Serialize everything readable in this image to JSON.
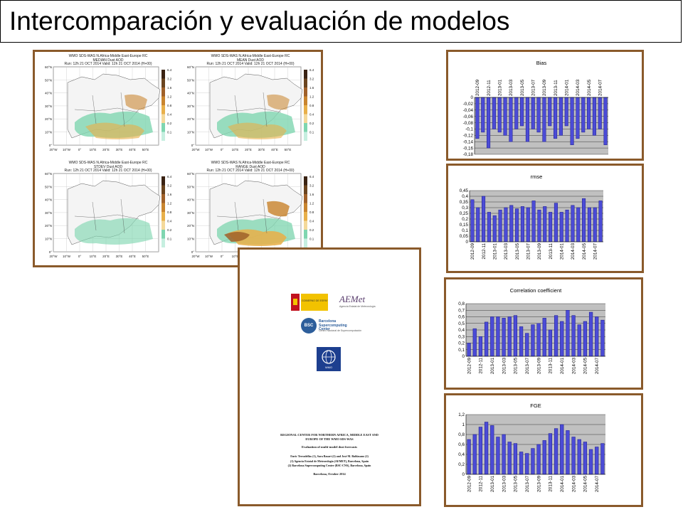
{
  "slide": {
    "title": "Intercomparación y evaluación de modelos"
  },
  "maps": {
    "panels": [
      {
        "line1": "WMO SDS-WAS   N.Africa-Middle East-Europe RC",
        "line2": "MEDIAN   Dust AOD",
        "line3": "Run: 12h 21 OCT 2014   Valid: 12h 21 OCT 2014 (H+00)"
      },
      {
        "line1": "WMO SDS-WAS   N.Africa-Middle East-Europe RC",
        "line2": "MEAN   Dust AOD",
        "line3": "Run: 12h 21 OCT 2014   Valid: 12h 21 OCT 2014 (H+00)"
      },
      {
        "line1": "WMO SDS-WAS   N.Africa-Middle East-Europe RC",
        "line2": "STDEV   Dust AOD",
        "line3": "Run: 12h 21 OCT 2014   Valid: 12h 21 OCT 2014 (H+00)"
      },
      {
        "line1": "WMO SDS-WAS   N.Africa-Middle East-Europe RC",
        "line2": "RANGE   Dust AOD",
        "line3": "Run: 12h 21 OCT 2014   Valid: 12h 21 OCT 2014 (H+00)"
      }
    ],
    "lat_labels": [
      "60°N",
      "50°N",
      "40°N",
      "30°N",
      "20°N",
      "10°N",
      "0°"
    ],
    "lon_labels": [
      "20°W",
      "10°W",
      "0°",
      "10°E",
      "20°E",
      "30°E",
      "40°E",
      "50°E"
    ],
    "colorbar_labels": [
      "6.4",
      "3.2",
      "1.6",
      "1.2",
      "0.8",
      "0.4",
      "0.2",
      "0.1"
    ],
    "colorbar_colors": [
      "#3a2313",
      "#6b4520",
      "#a0612a",
      "#c9852f",
      "#e8b04a",
      "#f4d99a",
      "#7fd6b0",
      "#c6efe0"
    ]
  },
  "report": {
    "aemet_text": "AEMet",
    "aemet_sub": "Agencia Estatal de Meteorología",
    "bsc_name": "Barcelona Supercomputing Center",
    "bsc_sub": "Centro Nacional de Supercomputación",
    "wmo_label": "WMO",
    "gov_text": "GOBIERNO DE ESPAÑA",
    "title1": "REGIONAL CENTER FOR NORTHERN AFRICA, MIDDLE EAST AND",
    "title2": "EUROPE OF THE WMO SDS-WAS",
    "subtitle": "Evaluation of multi-model dust forecasts",
    "authors": "Enric Terradellas (1), Sara Basart (2) and José M. Baldasano (2)",
    "aff1": "(1) Agencia Estatal de Meteorología (AEMET), Barcelona, Spain",
    "aff2": "(2) Barcelona Supercomputing Center (BSC-CNS), Barcelona, Spain",
    "date": "Barcelona, October 2014"
  },
  "chart_data": [
    {
      "type": "bar",
      "title": "Bias",
      "categories": [
        "2012-09",
        "2012-10",
        "2012-11",
        "2012-12",
        "2013-01",
        "2013-02",
        "2013-03",
        "2013-04",
        "2013-05",
        "2013-06",
        "2013-07",
        "2013-08",
        "2013-09",
        "2013-10",
        "2013-11",
        "2013-12",
        "2014-01",
        "2014-02",
        "2014-03",
        "2014-04",
        "2014-05",
        "2014-06",
        "2014-07",
        "2014-08"
      ],
      "tick_labels": [
        "2012-09",
        "2012-11",
        "2013-01",
        "2013-03",
        "2013-05",
        "2013-07",
        "2013-09",
        "2013-11",
        "2014-01",
        "2014-03",
        "2014-05",
        "2014-07"
      ],
      "values": [
        -0.13,
        -0.11,
        -0.16,
        -0.1,
        -0.11,
        -0.12,
        -0.14,
        -0.1,
        -0.09,
        -0.14,
        -0.1,
        -0.11,
        -0.14,
        -0.09,
        -0.13,
        -0.12,
        -0.09,
        -0.15,
        -0.13,
        -0.11,
        -0.1,
        -0.12,
        -0.1,
        -0.15
      ],
      "ylim": [
        -0.18,
        0
      ],
      "yticks": [
        "0",
        "-0,02",
        "-0,04",
        "-0,06",
        "-0,08",
        "-0,1",
        "-0,12",
        "-0,14",
        "-0,16",
        "-0,18"
      ],
      "xlabels_position": "top"
    },
    {
      "type": "bar",
      "title": "rmse",
      "categories": [
        "2012-09",
        "2012-10",
        "2012-11",
        "2012-12",
        "2013-01",
        "2013-02",
        "2013-03",
        "2013-04",
        "2013-05",
        "2013-06",
        "2013-07",
        "2013-08",
        "2013-09",
        "2013-10",
        "2013-11",
        "2013-12",
        "2014-01",
        "2014-02",
        "2014-03",
        "2014-04",
        "2014-05",
        "2014-06",
        "2014-07",
        "2014-08"
      ],
      "tick_labels": [
        "2012-09",
        "2012-11",
        "2013-01",
        "2013-03",
        "2013-05",
        "2013-07",
        "2013-09",
        "2013-11",
        "2014-01",
        "2014-03",
        "2014-05",
        "2014-07"
      ],
      "values": [
        0.37,
        0.3,
        0.4,
        0.26,
        0.23,
        0.28,
        0.3,
        0.32,
        0.29,
        0.31,
        0.3,
        0.36,
        0.28,
        0.31,
        0.26,
        0.34,
        0.26,
        0.28,
        0.32,
        0.3,
        0.38,
        0.3,
        0.3,
        0.36
      ],
      "ylim": [
        0,
        0.45
      ],
      "yticks": [
        "0",
        "0,05",
        "0,1",
        "0,15",
        "0,2",
        "0,25",
        "0,3",
        "0,35",
        "0,4",
        "0,45"
      ],
      "xlabels_position": "bottom"
    },
    {
      "type": "bar",
      "title": "Correlation coefficient",
      "categories": [
        "2012-09",
        "2012-10",
        "2012-11",
        "2012-12",
        "2013-01",
        "2013-02",
        "2013-03",
        "2013-04",
        "2013-05",
        "2013-06",
        "2013-07",
        "2013-08",
        "2013-09",
        "2013-10",
        "2013-11",
        "2013-12",
        "2014-01",
        "2014-02",
        "2014-03",
        "2014-04",
        "2014-05",
        "2014-06",
        "2014-07",
        "2014-08"
      ],
      "tick_labels": [
        "2012-09",
        "2012-11",
        "2013-01",
        "2013-03",
        "2013-05",
        "2013-07",
        "2013-09",
        "2013-11",
        "2014-01",
        "2014-03",
        "2014-05",
        "2014-07"
      ],
      "values": [
        0.2,
        0.42,
        0.3,
        0.52,
        0.6,
        0.6,
        0.58,
        0.6,
        0.62,
        0.45,
        0.35,
        0.48,
        0.5,
        0.58,
        0.4,
        0.62,
        0.53,
        0.7,
        0.62,
        0.48,
        0.53,
        0.67,
        0.6,
        0.55
      ],
      "ylim": [
        0,
        0.8
      ],
      "yticks": [
        "0",
        "0,1",
        "0,2",
        "0,3",
        "0,4",
        "0,5",
        "0,6",
        "0,7",
        "0,8"
      ],
      "xlabels_position": "bottom"
    },
    {
      "type": "bar",
      "title": "FGE",
      "categories": [
        "2012-09",
        "2012-10",
        "2012-11",
        "2012-12",
        "2013-01",
        "2013-02",
        "2013-03",
        "2013-04",
        "2013-05",
        "2013-06",
        "2013-07",
        "2013-08",
        "2013-09",
        "2013-10",
        "2013-11",
        "2013-12",
        "2014-01",
        "2014-02",
        "2014-03",
        "2014-04",
        "2014-05",
        "2014-06",
        "2014-07",
        "2014-08"
      ],
      "tick_labels": [
        "2012-09",
        "2012-11",
        "2013-01",
        "2013-03",
        "2013-05",
        "2013-07",
        "2013-09",
        "2013-11",
        "2014-01",
        "2014-03",
        "2014-05",
        "2014-07"
      ],
      "values": [
        0.7,
        0.8,
        0.95,
        1.05,
        0.98,
        0.75,
        0.8,
        0.65,
        0.62,
        0.45,
        0.42,
        0.52,
        0.6,
        0.68,
        0.82,
        0.92,
        1.0,
        0.88,
        0.75,
        0.7,
        0.65,
        0.5,
        0.55,
        0.62
      ],
      "ylim": [
        0,
        1.2
      ],
      "yticks": [
        "0",
        "0,2",
        "0,4",
        "0,6",
        "0,8",
        "1",
        "1,2"
      ],
      "xlabels_position": "bottom"
    }
  ]
}
